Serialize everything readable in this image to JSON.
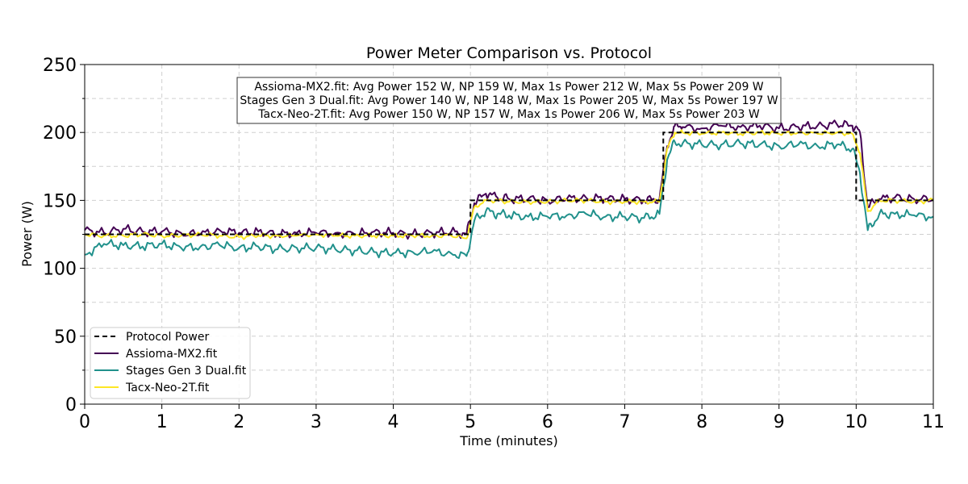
{
  "chart_data": {
    "type": "line",
    "title": "Power Meter Comparison vs. Protocol",
    "xlabel": "Time (minutes)",
    "ylabel": "Power (W)",
    "xlim": [
      0,
      11
    ],
    "ylim": [
      0,
      250
    ],
    "xticks": [
      0,
      1,
      2,
      3,
      4,
      5,
      6,
      7,
      8,
      9,
      10,
      11
    ],
    "yticks": [
      0,
      50,
      100,
      150,
      200,
      250
    ],
    "grid": true,
    "legend_position": "lower-left",
    "stats_box": [
      "Assioma-MX2.fit: Avg Power 152 W, NP 159 W, Max 1s Power 212 W, Max 5s Power 209 W",
      "Stages Gen 3 Dual.fit: Avg Power 140 W, NP 148 W, Max 1s Power 205 W, Max 5s Power 197 W",
      "Tacx-Neo-2T.fit: Avg Power 150 W, NP 157 W, Max 1s Power 206 W, Max 5s Power 203 W"
    ],
    "protocol": {
      "name": "Protocol Power",
      "color": "#000000",
      "dashed": true,
      "steps": [
        {
          "start": 0,
          "end": 5,
          "power": 125
        },
        {
          "start": 5,
          "end": 7.5,
          "power": 150
        },
        {
          "start": 7.5,
          "end": 10,
          "power": 200
        },
        {
          "start": 10,
          "end": 11,
          "power": 150
        }
      ]
    },
    "series": [
      {
        "name": "Assioma-MX2.fit",
        "color": "#440154",
        "x": [
          0,
          0.25,
          0.5,
          0.75,
          1,
          1.25,
          1.5,
          1.75,
          2,
          2.25,
          2.5,
          2.75,
          3,
          3.25,
          3.5,
          3.75,
          4,
          4.25,
          4.5,
          4.75,
          4.95,
          5.05,
          5.2,
          5.35,
          5.5,
          5.75,
          6,
          6.25,
          6.5,
          6.75,
          7,
          7.25,
          7.45,
          7.55,
          7.65,
          7.75,
          8,
          8.25,
          8.5,
          8.75,
          9,
          9.25,
          9.5,
          9.75,
          9.95,
          10.05,
          10.15,
          10.3,
          10.5,
          10.75,
          11
        ],
        "values": [
          128,
          126,
          129,
          127,
          127,
          126,
          125,
          128,
          126,
          127,
          125,
          126,
          126,
          126,
          125,
          127,
          126,
          125,
          126,
          127,
          125,
          148,
          155,
          152,
          151,
          151,
          150,
          151,
          152,
          151,
          151,
          150,
          151,
          190,
          205,
          204,
          203,
          205,
          204,
          205,
          203,
          204,
          205,
          206,
          205,
          200,
          145,
          151,
          152,
          151,
          151
        ]
      },
      {
        "name": "Stages Gen 3 Dual.fit",
        "color": "#21918c",
        "x": [
          0,
          0.25,
          0.5,
          0.75,
          1,
          1.25,
          1.5,
          1.75,
          2,
          2.25,
          2.5,
          2.75,
          3,
          3.25,
          3.5,
          3.75,
          4,
          4.25,
          4.5,
          4.75,
          4.95,
          5.05,
          5.2,
          5.35,
          5.5,
          5.75,
          6,
          6.25,
          6.5,
          6.75,
          7,
          7.25,
          7.45,
          7.55,
          7.65,
          7.75,
          8,
          8.25,
          8.5,
          8.75,
          9,
          9.25,
          9.5,
          9.75,
          9.95,
          10.05,
          10.15,
          10.3,
          10.5,
          10.75,
          11
        ],
        "values": [
          110,
          118,
          117,
          116,
          118,
          115,
          116,
          117,
          115,
          116,
          114,
          115,
          115,
          114,
          113,
          112,
          111,
          112,
          112,
          111,
          109,
          135,
          142,
          140,
          139,
          138,
          138,
          139,
          140,
          138,
          138,
          137,
          140,
          180,
          193,
          192,
          191,
          191,
          192,
          191,
          190,
          191,
          190,
          191,
          188,
          170,
          128,
          140,
          140,
          139,
          138
        ]
      },
      {
        "name": "Tacx-Neo-2T.fit",
        "color": "#fde725",
        "x": [
          0,
          0.25,
          0.5,
          0.75,
          1,
          1.25,
          1.5,
          1.75,
          2,
          2.25,
          2.5,
          2.75,
          3,
          3.25,
          3.5,
          3.75,
          4,
          4.25,
          4.5,
          4.75,
          4.95,
          5.05,
          5.2,
          5.35,
          5.5,
          5.75,
          6,
          6.25,
          6.5,
          6.75,
          7,
          7.25,
          7.45,
          7.55,
          7.65,
          7.75,
          8,
          8.25,
          8.5,
          8.75,
          9,
          9.25,
          9.5,
          9.75,
          9.95,
          10.05,
          10.15,
          10.3,
          10.5,
          10.75,
          11
        ],
        "values": [
          125,
          124,
          124,
          125,
          124,
          124,
          125,
          124,
          123,
          124,
          124,
          124,
          125,
          124,
          124,
          124,
          124,
          124,
          124,
          124,
          122,
          145,
          150,
          150,
          149,
          149,
          149,
          150,
          150,
          149,
          149,
          149,
          149,
          188,
          200,
          200,
          199,
          200,
          199,
          200,
          199,
          200,
          199,
          200,
          199,
          185,
          142,
          150,
          150,
          149,
          150
        ]
      }
    ]
  }
}
